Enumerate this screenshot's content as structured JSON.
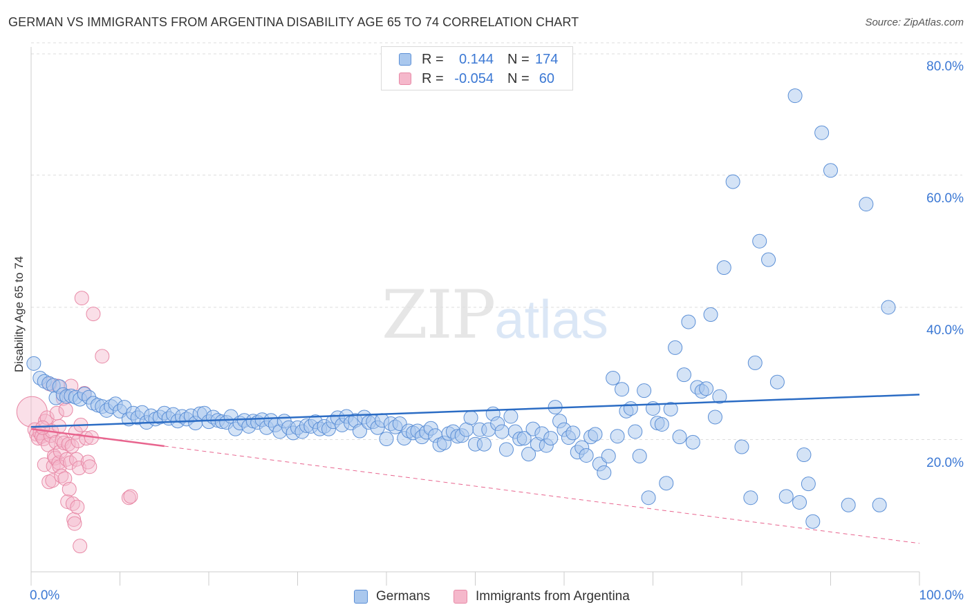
{
  "header": {
    "title": "GERMAN VS IMMIGRANTS FROM ARGENTINA DISABILITY AGE 65 TO 74 CORRELATION CHART",
    "source": "Source: ZipAtlas.com"
  },
  "legend": {
    "r_label": "R =",
    "n_label": "N =",
    "rows": [
      {
        "r": "0.144",
        "n": "174"
      },
      {
        "r": "-0.054",
        "n": "60"
      }
    ]
  },
  "watermark": {
    "part1": "ZIP",
    "part2": "atlas"
  },
  "colors": {
    "blue_fill": "#aac8ee",
    "blue_stroke": "#5b8fd6",
    "blue_line": "#2b6cc4",
    "pink_fill": "#f5b8cb",
    "pink_stroke": "#e889a6",
    "pink_line": "#e8648e",
    "tick_text": "#3b78d4",
    "grid": "#dddddd"
  },
  "chart_data": {
    "type": "scatter",
    "title": "GERMAN VS IMMIGRANTS FROM ARGENTINA DISABILITY AGE 65 TO 74 CORRELATION CHART",
    "xlabel": "",
    "ylabel": "Disability Age 65 to 74",
    "xlim": [
      0,
      100
    ],
    "ylim": [
      0,
      85
    ],
    "x_tick_labels": [
      "0.0%",
      "100.0%"
    ],
    "y_ticks": [
      20,
      40,
      60,
      80
    ],
    "y_tick_labels": [
      "20.0%",
      "40.0%",
      "60.0%",
      "80.0%"
    ],
    "grid": "horizontal dashed",
    "legend_position": "top-center",
    "series": [
      {
        "name": "Germans",
        "color": "#aac8ee",
        "r": 0.144,
        "n": 174,
        "trend": {
          "x": [
            0,
            100
          ],
          "y": [
            21.9,
            26.8
          ]
        },
        "points": [
          [
            0.3,
            31.5
          ],
          [
            1,
            29.3
          ],
          [
            1.5,
            28.8
          ],
          [
            2,
            28.5
          ],
          [
            2.5,
            28.2
          ],
          [
            2.8,
            26.3
          ],
          [
            3.2,
            28.0
          ],
          [
            3.6,
            26.8
          ],
          [
            4,
            26.5
          ],
          [
            4.5,
            26.6
          ],
          [
            5,
            26.4
          ],
          [
            5.5,
            26.1
          ],
          [
            6,
            26.9
          ],
          [
            6.5,
            26.4
          ],
          [
            7,
            25.5
          ],
          [
            7.5,
            25.2
          ],
          [
            8,
            25.0
          ],
          [
            8.5,
            24.4
          ],
          [
            9,
            25.0
          ],
          [
            9.5,
            25.4
          ],
          [
            10,
            24.3
          ],
          [
            10.5,
            24.9
          ],
          [
            11,
            23.1
          ],
          [
            11.5,
            24.0
          ],
          [
            12,
            23.3
          ],
          [
            12.5,
            24.1
          ],
          [
            13,
            22.6
          ],
          [
            13.5,
            23.6
          ],
          [
            14,
            23.1
          ],
          [
            14.5,
            23.4
          ],
          [
            15,
            24.0
          ],
          [
            15.5,
            23.2
          ],
          [
            16,
            23.8
          ],
          [
            16.5,
            22.8
          ],
          [
            17,
            23.5
          ],
          [
            17.5,
            23.1
          ],
          [
            18,
            23.6
          ],
          [
            18.5,
            22.5
          ],
          [
            19,
            23.9
          ],
          [
            19.5,
            24.0
          ],
          [
            20,
            22.7
          ],
          [
            20.5,
            23.4
          ],
          [
            21,
            22.9
          ],
          [
            21.5,
            22.7
          ],
          [
            22,
            22.6
          ],
          [
            22.5,
            23.5
          ],
          [
            23,
            21.6
          ],
          [
            23.5,
            22.5
          ],
          [
            24,
            22.9
          ],
          [
            24.5,
            22.0
          ],
          [
            25,
            22.8
          ],
          [
            25.5,
            22.6
          ],
          [
            26,
            23.0
          ],
          [
            26.5,
            21.8
          ],
          [
            27,
            22.9
          ],
          [
            27.5,
            22.2
          ],
          [
            28,
            21.2
          ],
          [
            28.5,
            22.8
          ],
          [
            29,
            21.8
          ],
          [
            29.5,
            21.0
          ],
          [
            30,
            21.8
          ],
          [
            30.5,
            21.2
          ],
          [
            31,
            22.1
          ],
          [
            31.5,
            22.0
          ],
          [
            32,
            22.7
          ],
          [
            32.5,
            21.6
          ],
          [
            33,
            22.0
          ],
          [
            33.5,
            21.6
          ],
          [
            34,
            22.7
          ],
          [
            34.5,
            23.3
          ],
          [
            35,
            22.2
          ],
          [
            35.5,
            23.5
          ],
          [
            36,
            22.5
          ],
          [
            36.5,
            22.9
          ],
          [
            37,
            21.3
          ],
          [
            37.5,
            23.4
          ],
          [
            38,
            22.6
          ],
          [
            38.5,
            22.7
          ],
          [
            39,
            21.8
          ],
          [
            39.5,
            22.9
          ],
          [
            40,
            20.1
          ],
          [
            40.5,
            22.4
          ],
          [
            41,
            21.9
          ],
          [
            41.5,
            22.4
          ],
          [
            42,
            20.2
          ],
          [
            42.5,
            21.3
          ],
          [
            43,
            21.0
          ],
          [
            43.5,
            21.3
          ],
          [
            44,
            20.4
          ],
          [
            44.5,
            21.1
          ],
          [
            45,
            21.7
          ],
          [
            45.5,
            20.6
          ],
          [
            46,
            19.2
          ],
          [
            46.5,
            19.5
          ],
          [
            47,
            20.9
          ],
          [
            47.5,
            21.2
          ],
          [
            48,
            20.5
          ],
          [
            48.5,
            20.6
          ],
          [
            49,
            21.5
          ],
          [
            49.5,
            23.3
          ],
          [
            50,
            19.3
          ],
          [
            50.5,
            21.5
          ],
          [
            51,
            19.3
          ],
          [
            51.5,
            21.5
          ],
          [
            52,
            23.9
          ],
          [
            52.5,
            22.4
          ],
          [
            53,
            21.2
          ],
          [
            53.5,
            18.5
          ],
          [
            54,
            23.5
          ],
          [
            54.5,
            21.2
          ],
          [
            55,
            20.1
          ],
          [
            55.5,
            20.2
          ],
          [
            56,
            17.8
          ],
          [
            56.5,
            21.6
          ],
          [
            57,
            19.3
          ],
          [
            57.5,
            20.9
          ],
          [
            58,
            19.1
          ],
          [
            58.5,
            20.2
          ],
          [
            59,
            24.9
          ],
          [
            59.5,
            22.8
          ],
          [
            60,
            21.5
          ],
          [
            60.5,
            20.3
          ],
          [
            61,
            21.0
          ],
          [
            61.5,
            18.1
          ],
          [
            62,
            18.8
          ],
          [
            62.5,
            17.6
          ],
          [
            63,
            20.4
          ],
          [
            63.5,
            20.8
          ],
          [
            64,
            16.3
          ],
          [
            64.5,
            15.0
          ],
          [
            65,
            17.5
          ],
          [
            65.5,
            29.3
          ],
          [
            66,
            20.5
          ],
          [
            66.5,
            27.6
          ],
          [
            67,
            24.3
          ],
          [
            67.5,
            24.7
          ],
          [
            68,
            21.2
          ],
          [
            68.5,
            17.5
          ],
          [
            69,
            27.4
          ],
          [
            69.5,
            11.2
          ],
          [
            70,
            24.7
          ],
          [
            70.5,
            22.5
          ],
          [
            71,
            22.3
          ],
          [
            71.5,
            13.4
          ],
          [
            72,
            24.6
          ],
          [
            72.5,
            33.9
          ],
          [
            73,
            20.4
          ],
          [
            73.5,
            29.8
          ],
          [
            74,
            37.8
          ],
          [
            74.5,
            19.6
          ],
          [
            75,
            27.9
          ],
          [
            75.5,
            27.3
          ],
          [
            76,
            27.7
          ],
          [
            76.5,
            38.9
          ],
          [
            77,
            23.4
          ],
          [
            78,
            46.0
          ],
          [
            79,
            59.0
          ],
          [
            80,
            18.9
          ],
          [
            81,
            11.2
          ],
          [
            81.5,
            31.6
          ],
          [
            82,
            50.0
          ],
          [
            83,
            47.2
          ],
          [
            84,
            28.7
          ],
          [
            85,
            11.4
          ],
          [
            86,
            72.0
          ],
          [
            86.5,
            10.5
          ],
          [
            87,
            17.7
          ],
          [
            87.5,
            13.3
          ],
          [
            88,
            7.6
          ],
          [
            89,
            66.4
          ],
          [
            90,
            60.7
          ],
          [
            92,
            10.1
          ],
          [
            94,
            55.6
          ],
          [
            95.5,
            10.1
          ],
          [
            96.5,
            40.0
          ],
          [
            77.5,
            26.5
          ]
        ]
      },
      {
        "name": "Immigrants from Argentina",
        "color": "#f5b8cb",
        "r": -0.054,
        "n": 60,
        "trend": {
          "x": [
            0,
            100
          ],
          "y": [
            21.6,
            4.3
          ]
        },
        "points": [
          [
            0.1,
            24.2
          ],
          [
            0.4,
            21.5
          ],
          [
            0.6,
            20.8
          ],
          [
            0.8,
            20.2
          ],
          [
            1,
            21.0
          ],
          [
            1.2,
            20.5
          ],
          [
            1.4,
            20.1
          ],
          [
            1.5,
            16.2
          ],
          [
            1.6,
            22.8
          ],
          [
            1.8,
            23.3
          ],
          [
            1.9,
            19.2
          ],
          [
            2,
            13.6
          ],
          [
            2.2,
            20.6
          ],
          [
            2.3,
            21.3
          ],
          [
            2.4,
            13.8
          ],
          [
            2.5,
            16.0
          ],
          [
            2.6,
            17.5
          ],
          [
            2.7,
            17.2
          ],
          [
            2.8,
            19.6
          ],
          [
            2.9,
            24.0
          ],
          [
            3,
            28.1
          ],
          [
            3.1,
            16.5
          ],
          [
            3.2,
            15.9
          ],
          [
            3.3,
            18.2
          ],
          [
            3.4,
            14.5
          ],
          [
            3.5,
            19.9
          ],
          [
            3.6,
            26.2
          ],
          [
            3.7,
            19.5
          ],
          [
            3.8,
            14.1
          ],
          [
            3.9,
            24.5
          ],
          [
            4,
            17.0
          ],
          [
            4.1,
            10.6
          ],
          [
            4.2,
            19.3
          ],
          [
            4.3,
            12.5
          ],
          [
            4.4,
            16.5
          ],
          [
            4.5,
            28.1
          ],
          [
            4.6,
            19.0
          ],
          [
            4.7,
            10.3
          ],
          [
            4.8,
            7.9
          ],
          [
            4.9,
            7.3
          ],
          [
            5,
            21.1
          ],
          [
            5.1,
            17.0
          ],
          [
            5.2,
            9.8
          ],
          [
            5.3,
            19.8
          ],
          [
            5.4,
            15.7
          ],
          [
            5.5,
            3.9
          ],
          [
            5.6,
            22.2
          ],
          [
            5.7,
            41.4
          ],
          [
            6,
            27.0
          ],
          [
            6.2,
            20.2
          ],
          [
            6.4,
            16.6
          ],
          [
            6.6,
            15.9
          ],
          [
            6.8,
            20.3
          ],
          [
            7,
            39.0
          ],
          [
            8,
            32.6
          ],
          [
            11,
            11.2
          ],
          [
            11.2,
            11.4
          ],
          [
            2.1,
            28.4
          ],
          [
            3.15,
            22.0
          ],
          [
            1.3,
            21.8
          ]
        ]
      }
    ]
  }
}
